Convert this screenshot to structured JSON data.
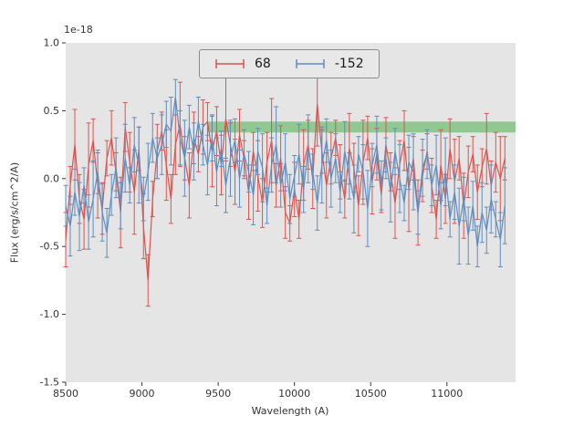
{
  "figure": {
    "kind": "matplotlib-errorbar-plot"
  },
  "colors": {
    "figure_bg": "#ffffff",
    "plot_bg": "#e5e5e5",
    "tick_color": "#333333",
    "text_color": "#333333",
    "band_color": "#4daf4a",
    "red_series": "#d9544f",
    "blue_series": "#5f8dbf",
    "legend_bg": "#e8e8e8",
    "legend_border": "#8a8a8a"
  },
  "chart_data": {
    "type": "line",
    "title": "",
    "offset_text": "1e-18",
    "xlabel": "Wavelength (A)",
    "ylabel": "Flux (erg/s/cm^2/A)",
    "y_scale": "1e-18",
    "xlim": [
      8500,
      11450
    ],
    "ylim": [
      -1.5,
      1.0
    ],
    "x_ticks": [
      8500,
      9000,
      9500,
      10000,
      10500,
      11000
    ],
    "y_ticks": [
      -1.5,
      -1.0,
      -0.5,
      0.0,
      0.5,
      1.0
    ],
    "grid": false,
    "legend": {
      "position": "upper center",
      "entries": [
        "68",
        "-152"
      ]
    },
    "band": {
      "x0": 9430,
      "x1": 11450,
      "y0": 0.34,
      "y1": 0.42,
      "color": "#4daf4a",
      "opacity": 0.55
    },
    "x": [
      8500,
      8530,
      8560,
      8590,
      8620,
      8650,
      8680,
      8710,
      8740,
      8770,
      8800,
      8830,
      8860,
      8890,
      8920,
      8950,
      8980,
      9010,
      9040,
      9070,
      9100,
      9130,
      9160,
      9190,
      9220,
      9250,
      9280,
      9310,
      9340,
      9370,
      9400,
      9430,
      9460,
      9490,
      9520,
      9550,
      9580,
      9610,
      9640,
      9670,
      9700,
      9730,
      9760,
      9790,
      9820,
      9850,
      9880,
      9910,
      9940,
      9970,
      10000,
      10030,
      10060,
      10090,
      10120,
      10150,
      10180,
      10210,
      10240,
      10270,
      10300,
      10330,
      10360,
      10390,
      10420,
      10450,
      10480,
      10510,
      10540,
      10570,
      10600,
      10630,
      10660,
      10690,
      10720,
      10750,
      10780,
      10810,
      10840,
      10870,
      10900,
      10930,
      10960,
      10990,
      11020,
      11050,
      11080,
      11110,
      11140,
      11170,
      11200,
      11230,
      11260,
      11290,
      11320,
      11350,
      11380
    ],
    "series": [
      {
        "name": "68",
        "color": "#d9544f",
        "y": [
          -0.45,
          -0.05,
          0.25,
          -0.15,
          -0.3,
          0.1,
          0.28,
          -0.05,
          -0.22,
          0.15,
          0.3,
          0.05,
          -0.25,
          0.38,
          0.12,
          -0.1,
          0.22,
          -0.35,
          -0.75,
          -0.15,
          0.2,
          0.35,
          0.1,
          -0.15,
          0.25,
          0.4,
          0.15,
          -0.05,
          0.3,
          0.18,
          0.38,
          0.42,
          0.2,
          0.35,
          0.1,
          0.44,
          0.25,
          0.05,
          0.32,
          0.15,
          -0.1,
          0.2,
          0.02,
          -0.18,
          0.12,
          0.28,
          -0.05,
          0.15,
          -0.25,
          -0.33,
          -0.08,
          -0.3,
          0.1,
          0.25,
          0.0,
          0.55,
          0.2,
          -0.05,
          0.15,
          0.3,
          0.05,
          -0.15,
          0.22,
          0.08,
          -0.2,
          0.12,
          0.3,
          -0.02,
          0.18,
          -0.12,
          0.25,
          0.05,
          -0.18,
          0.1,
          0.28,
          -0.08,
          0.15,
          -0.25,
          0.02,
          0.2,
          -0.05,
          -0.3,
          0.1,
          -0.15,
          0.22,
          -0.02,
          0.15,
          -0.2,
          0.05,
          0.18,
          -0.1,
          0.08,
          0.22,
          -0.05,
          0.12,
          0.0,
          0.15
        ],
        "yerr": [
          0.2,
          0.14,
          0.26,
          0.18,
          0.22,
          0.31,
          0.16,
          0.24,
          0.19,
          0.13,
          0.2,
          0.14,
          0.26,
          0.18,
          0.22,
          0.31,
          0.16,
          0.24,
          0.19,
          0.13,
          0.2,
          0.14,
          0.26,
          0.18,
          0.22,
          0.31,
          0.16,
          0.24,
          0.19,
          0.13,
          0.2,
          0.14,
          0.26,
          0.18,
          0.22,
          0.31,
          0.16,
          0.24,
          0.19,
          0.13,
          0.2,
          0.14,
          0.26,
          0.18,
          0.22,
          0.31,
          0.16,
          0.24,
          0.19,
          0.13,
          0.2,
          0.14,
          0.26,
          0.18,
          0.22,
          0.31,
          0.16,
          0.24,
          0.19,
          0.13,
          0.2,
          0.14,
          0.26,
          0.18,
          0.22,
          0.31,
          0.16,
          0.24,
          0.19,
          0.13,
          0.2,
          0.14,
          0.26,
          0.18,
          0.22,
          0.31,
          0.16,
          0.24,
          0.19,
          0.13,
          0.2,
          0.14,
          0.26,
          0.18,
          0.22,
          0.31,
          0.16,
          0.24,
          0.19,
          0.13,
          0.2,
          0.14,
          0.26,
          0.18,
          0.22,
          0.31,
          0.16
        ]
      },
      {
        "name": "-152",
        "color": "#5f8dbf",
        "y": [
          -0.2,
          -0.35,
          -0.1,
          -0.28,
          -0.05,
          -0.32,
          -0.15,
          0.05,
          -0.25,
          -0.4,
          -0.12,
          0.08,
          -0.2,
          0.15,
          -0.05,
          0.25,
          0.1,
          -0.15,
          0.05,
          0.3,
          0.15,
          0.25,
          0.4,
          0.35,
          0.6,
          0.3,
          0.15,
          0.38,
          0.2,
          0.42,
          0.25,
          0.1,
          0.3,
          0.05,
          0.22,
          -0.05,
          0.15,
          0.28,
          0.0,
          0.18,
          0.05,
          -0.12,
          0.2,
          0.08,
          -0.2,
          0.1,
          0.25,
          -0.05,
          0.12,
          -0.15,
          0.02,
          0.18,
          -0.08,
          0.22,
          0.05,
          -0.18,
          0.1,
          0.28,
          0.0,
          0.15,
          -0.1,
          0.2,
          0.02,
          -0.15,
          0.18,
          0.05,
          -0.22,
          0.1,
          0.25,
          -0.05,
          0.15,
          -0.1,
          0.2,
          0.0,
          -0.18,
          0.12,
          0.05,
          -0.25,
          0.08,
          0.18,
          -0.05,
          0.1,
          -0.2,
          0.05,
          -0.3,
          -0.1,
          -0.35,
          -0.15,
          -0.42,
          -0.2,
          -0.5,
          -0.25,
          -0.38,
          -0.15,
          -0.3,
          -0.45,
          -0.2
        ],
        "yerr": [
          0.15,
          0.22,
          0.17,
          0.25,
          0.13,
          0.2,
          0.28,
          0.16,
          0.21,
          0.18,
          0.15,
          0.22,
          0.17,
          0.25,
          0.13,
          0.2,
          0.28,
          0.16,
          0.21,
          0.18,
          0.15,
          0.22,
          0.17,
          0.25,
          0.13,
          0.2,
          0.28,
          0.16,
          0.21,
          0.18,
          0.15,
          0.22,
          0.17,
          0.25,
          0.13,
          0.2,
          0.28,
          0.16,
          0.21,
          0.18,
          0.15,
          0.22,
          0.17,
          0.25,
          0.13,
          0.2,
          0.28,
          0.16,
          0.21,
          0.18,
          0.15,
          0.22,
          0.17,
          0.25,
          0.13,
          0.2,
          0.28,
          0.16,
          0.21,
          0.18,
          0.15,
          0.22,
          0.17,
          0.25,
          0.13,
          0.2,
          0.28,
          0.16,
          0.21,
          0.18,
          0.15,
          0.22,
          0.17,
          0.25,
          0.13,
          0.2,
          0.28,
          0.16,
          0.21,
          0.18,
          0.15,
          0.22,
          0.17,
          0.25,
          0.13,
          0.2,
          0.28,
          0.16,
          0.21,
          0.18,
          0.15,
          0.22,
          0.17,
          0.25,
          0.13,
          0.2,
          0.28
        ]
      }
    ]
  }
}
